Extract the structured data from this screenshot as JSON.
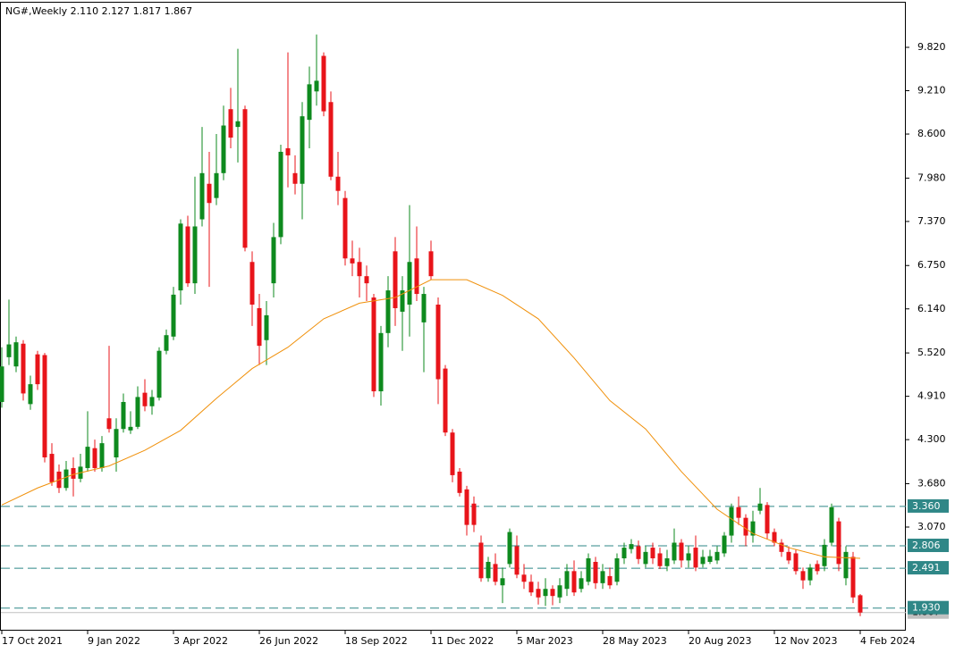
{
  "chart_data": {
    "type": "candlestick",
    "title": "NG#,Weekly  2.110 2.127 1.817 1.867",
    "categories": [
      "17 Oct 2021",
      null,
      null,
      null,
      null,
      null,
      null,
      null,
      null,
      null,
      null,
      null,
      "9 Jan 2022",
      null,
      null,
      null,
      null,
      null,
      null,
      null,
      null,
      null,
      null,
      null,
      "3 Apr 2022",
      null,
      null,
      null,
      null,
      null,
      null,
      null,
      null,
      null,
      null,
      null,
      "26 Jun 2022",
      null,
      null,
      null,
      null,
      null,
      null,
      null,
      null,
      null,
      null,
      null,
      "18 Sep 2022",
      null,
      null,
      null,
      null,
      null,
      null,
      null,
      null,
      null,
      null,
      null,
      "11 Dec 2022",
      null,
      null,
      null,
      null,
      null,
      null,
      null,
      null,
      null,
      null,
      null,
      "5 Mar 2023",
      null,
      null,
      null,
      null,
      null,
      null,
      null,
      null,
      null,
      null,
      null,
      "28 May 2023",
      null,
      null,
      null,
      null,
      null,
      null,
      null,
      null,
      null,
      null,
      null,
      "20 Aug 2023",
      null,
      null,
      null,
      null,
      null,
      null,
      null,
      null,
      null,
      null,
      null,
      "12 Nov 2023",
      null,
      null,
      null,
      null,
      null,
      null,
      null,
      null,
      null,
      null,
      null,
      "4 Feb 2024"
    ],
    "candles": [
      [
        4.83,
        5.6,
        4.75,
        5.33
      ],
      [
        5.46,
        6.27,
        5.35,
        5.64
      ],
      [
        5.33,
        5.75,
        5.25,
        5.67
      ],
      [
        5.65,
        5.7,
        4.85,
        4.95
      ],
      [
        4.8,
        5.2,
        4.72,
        5.08
      ],
      [
        5.5,
        5.55,
        5.0,
        5.08
      ],
      [
        5.49,
        5.52,
        3.98,
        4.05
      ],
      [
        4.1,
        4.25,
        3.65,
        3.7
      ],
      [
        3.85,
        3.95,
        3.55,
        3.62
      ],
      [
        3.62,
        4.0,
        3.58,
        3.88
      ],
      [
        3.9,
        4.05,
        3.5,
        3.75
      ],
      [
        3.75,
        4.1,
        3.7,
        3.92
      ],
      [
        3.9,
        4.7,
        3.85,
        4.2
      ],
      [
        4.18,
        4.3,
        3.85,
        3.9
      ],
      [
        3.9,
        4.35,
        3.85,
        4.25
      ],
      [
        4.6,
        5.62,
        4.4,
        4.45
      ],
      [
        4.05,
        4.6,
        3.85,
        4.45
      ],
      [
        4.45,
        4.95,
        4.4,
        4.83
      ],
      [
        4.43,
        4.7,
        4.38,
        4.48
      ],
      [
        4.48,
        5.05,
        4.45,
        4.9
      ],
      [
        4.96,
        5.15,
        4.7,
        4.77
      ],
      [
        4.77,
        5.0,
        4.65,
        4.9
      ],
      [
        4.89,
        5.6,
        4.85,
        5.55
      ],
      [
        5.55,
        5.85,
        5.5,
        5.77
      ],
      [
        5.75,
        6.45,
        5.7,
        6.34
      ],
      [
        6.4,
        7.4,
        6.2,
        7.34
      ],
      [
        7.3,
        7.45,
        6.45,
        6.5
      ],
      [
        6.5,
        8.0,
        6.35,
        7.3
      ],
      [
        7.4,
        8.7,
        7.3,
        8.05
      ],
      [
        7.9,
        8.35,
        6.45,
        7.63
      ],
      [
        7.7,
        8.6,
        7.6,
        8.05
      ],
      [
        8.05,
        9.0,
        7.95,
        8.72
      ],
      [
        8.95,
        9.25,
        8.4,
        8.55
      ],
      [
        8.7,
        9.8,
        8.2,
        8.78
      ],
      [
        8.95,
        9.0,
        6.95,
        7.0
      ],
      [
        6.8,
        6.95,
        5.9,
        6.2
      ],
      [
        6.15,
        6.35,
        5.35,
        5.62
      ],
      [
        5.7,
        6.25,
        5.35,
        6.05
      ],
      [
        6.5,
        7.35,
        6.3,
        7.15
      ],
      [
        7.15,
        8.45,
        7.05,
        8.35
      ],
      [
        8.4,
        9.75,
        7.85,
        8.3
      ],
      [
        8.05,
        8.3,
        7.75,
        7.9
      ],
      [
        7.9,
        9.05,
        7.4,
        8.85
      ],
      [
        8.8,
        9.55,
        8.4,
        9.3
      ],
      [
        9.2,
        10.0,
        9.0,
        9.35
      ],
      [
        9.7,
        9.75,
        8.85,
        8.92
      ],
      [
        9.05,
        9.2,
        7.95,
        8.0
      ],
      [
        8.0,
        8.35,
        7.6,
        7.8
      ],
      [
        7.7,
        7.8,
        6.75,
        6.85
      ],
      [
        6.85,
        7.1,
        6.6,
        6.78
      ],
      [
        6.8,
        7.0,
        6.3,
        6.6
      ],
      [
        6.6,
        6.75,
        6.25,
        6.5
      ],
      [
        6.3,
        6.35,
        4.9,
        4.98
      ],
      [
        4.98,
        5.9,
        4.78,
        5.8
      ],
      [
        5.8,
        6.6,
        5.6,
        6.4
      ],
      [
        6.95,
        7.15,
        5.9,
        6.15
      ],
      [
        6.1,
        6.6,
        5.55,
        6.4
      ],
      [
        6.2,
        7.6,
        5.75,
        6.8
      ],
      [
        6.85,
        7.3,
        6.25,
        6.35
      ],
      [
        5.95,
        6.45,
        5.25,
        6.35
      ],
      [
        6.95,
        7.1,
        6.55,
        6.6
      ],
      [
        6.2,
        6.3,
        4.8,
        5.15
      ],
      [
        5.3,
        5.35,
        4.35,
        4.4
      ],
      [
        4.4,
        4.45,
        3.7,
        3.8
      ],
      [
        3.85,
        3.9,
        3.5,
        3.55
      ],
      [
        3.6,
        3.65,
        2.95,
        3.1
      ],
      [
        3.4,
        3.5,
        3.0,
        3.1
      ],
      [
        2.85,
        2.95,
        2.3,
        2.35
      ],
      [
        2.35,
        2.65,
        2.3,
        2.58
      ],
      [
        2.55,
        2.7,
        2.25,
        2.3
      ],
      [
        2.25,
        2.5,
        2.0,
        2.35
      ],
      [
        2.55,
        3.05,
        2.5,
        3.0
      ],
      [
        2.8,
        2.95,
        2.35,
        2.4
      ],
      [
        2.4,
        2.55,
        2.2,
        2.3
      ],
      [
        2.3,
        2.4,
        2.1,
        2.15
      ],
      [
        2.2,
        2.3,
        1.98,
        2.08
      ],
      [
        2.1,
        2.35,
        1.96,
        2.2
      ],
      [
        2.2,
        2.25,
        1.97,
        2.1
      ],
      [
        2.08,
        2.35,
        2.0,
        2.25
      ],
      [
        2.2,
        2.55,
        2.1,
        2.45
      ],
      [
        2.45,
        2.6,
        2.1,
        2.15
      ],
      [
        2.2,
        2.45,
        2.15,
        2.35
      ],
      [
        2.3,
        2.7,
        2.25,
        2.63
      ],
      [
        2.58,
        2.65,
        2.2,
        2.28
      ],
      [
        2.28,
        2.55,
        2.2,
        2.45
      ],
      [
        2.38,
        2.5,
        2.2,
        2.25
      ],
      [
        2.3,
        2.7,
        2.25,
        2.63
      ],
      [
        2.63,
        2.85,
        2.55,
        2.78
      ],
      [
        2.76,
        2.9,
        2.7,
        2.83
      ],
      [
        2.8,
        2.88,
        2.55,
        2.62
      ],
      [
        2.55,
        2.8,
        2.5,
        2.72
      ],
      [
        2.78,
        2.85,
        2.55,
        2.63
      ],
      [
        2.7,
        2.78,
        2.48,
        2.52
      ],
      [
        2.52,
        2.75,
        2.45,
        2.63
      ],
      [
        2.6,
        3.05,
        2.55,
        2.85
      ],
      [
        2.85,
        2.9,
        2.5,
        2.6
      ],
      [
        2.6,
        2.8,
        2.5,
        2.7
      ],
      [
        2.78,
        2.95,
        2.45,
        2.5
      ],
      [
        2.55,
        2.75,
        2.5,
        2.65
      ],
      [
        2.58,
        2.75,
        2.55,
        2.66
      ],
      [
        2.6,
        2.8,
        2.55,
        2.72
      ],
      [
        2.7,
        3.0,
        2.65,
        2.95
      ],
      [
        2.95,
        3.4,
        2.85,
        3.35
      ],
      [
        3.35,
        3.5,
        3.1,
        3.2
      ],
      [
        3.2,
        3.25,
        2.8,
        2.95
      ],
      [
        2.95,
        3.3,
        2.85,
        3.15
      ],
      [
        3.3,
        3.62,
        3.25,
        3.4
      ],
      [
        3.38,
        3.42,
        2.9,
        2.98
      ],
      [
        3.0,
        3.05,
        2.8,
        2.85
      ],
      [
        2.85,
        2.9,
        2.65,
        2.72
      ],
      [
        2.72,
        2.8,
        2.55,
        2.6
      ],
      [
        2.7,
        2.75,
        2.4,
        2.45
      ],
      [
        2.45,
        2.5,
        2.2,
        2.32
      ],
      [
        2.32,
        2.55,
        2.25,
        2.5
      ],
      [
        2.55,
        2.6,
        2.4,
        2.45
      ],
      [
        2.52,
        2.9,
        2.45,
        2.82
      ],
      [
        2.85,
        3.4,
        2.8,
        3.35
      ],
      [
        3.15,
        3.2,
        2.45,
        2.55
      ],
      [
        2.35,
        2.8,
        2.25,
        2.72
      ],
      [
        2.65,
        2.72,
        2.0,
        2.08
      ],
      [
        2.11,
        2.127,
        1.817,
        1.867
      ]
    ],
    "up_color": "#0e8a1e",
    "down_color": "#e8141a",
    "moving_average": {
      "color": "#f0900a",
      "x": [
        0,
        5,
        10,
        15,
        20,
        25,
        30,
        35,
        40,
        45,
        50,
        55,
        60,
        65,
        70,
        75,
        80,
        85,
        90,
        95,
        100,
        105,
        110,
        115,
        120
      ],
      "values": [
        3.38,
        3.62,
        3.81,
        3.93,
        4.15,
        4.43,
        4.88,
        5.3,
        5.6,
        6.0,
        6.22,
        6.3,
        6.55,
        6.55,
        6.33,
        6.0,
        5.45,
        4.85,
        4.45,
        3.85,
        3.32,
        2.98,
        2.78,
        2.65,
        2.63
      ]
    },
    "levels": [
      {
        "value": 3.36,
        "label": "3.360"
      },
      {
        "value": 2.806,
        "label": "2.806"
      },
      {
        "value": 2.491,
        "label": "2.491"
      },
      {
        "value": 1.93,
        "label": "1.930"
      }
    ],
    "level_color": "#2f8787",
    "last_price": {
      "value": 1.867,
      "label": "1.867"
    },
    "ylim": [
      1.612,
      10.461
    ],
    "yticks": [
      {
        "value": 9.82,
        "label": "9.820"
      },
      {
        "value": 9.21,
        "label": "9.210"
      },
      {
        "value": 8.6,
        "label": "8.600"
      },
      {
        "value": 7.98,
        "label": "7.980"
      },
      {
        "value": 7.37,
        "label": "7.370"
      },
      {
        "value": 6.75,
        "label": "6.750"
      },
      {
        "value": 6.14,
        "label": "6.140"
      },
      {
        "value": 5.52,
        "label": "5.520"
      },
      {
        "value": 4.91,
        "label": "4.910"
      },
      {
        "value": 4.3,
        "label": "4.300"
      },
      {
        "value": 3.68,
        "label": "3.680"
      },
      {
        "value": 3.07,
        "label": "3.070"
      }
    ]
  }
}
